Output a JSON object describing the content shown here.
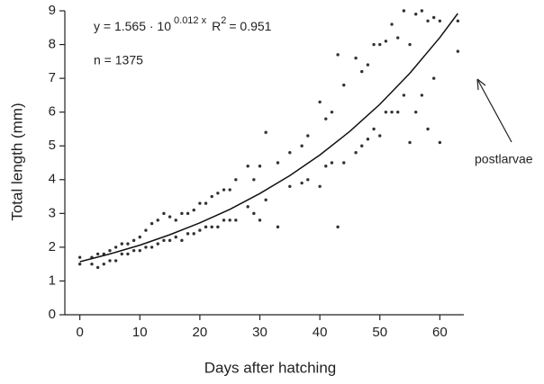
{
  "chart_data": {
    "type": "scatter",
    "x_label": "Days after hatching",
    "y_label": "Total length (mm)",
    "annotations": {
      "equation": "y = 1.565 · 10",
      "exponent": "0.012 x",
      "r": "R",
      "r_exponent": "2",
      "r_value": "= 0.951",
      "n": "n = 1375",
      "postlarvae": "postlarvae"
    },
    "x": [
      0,
      2,
      3,
      4,
      5,
      6,
      7,
      8,
      9,
      10,
      11,
      12,
      13,
      14,
      15,
      16,
      17,
      18,
      19,
      20,
      21,
      22,
      23,
      24,
      25,
      26,
      28,
      29,
      30,
      31,
      33,
      35,
      37,
      38,
      40,
      41,
      42,
      43,
      44,
      46,
      47,
      48,
      49,
      50,
      51,
      52,
      53,
      54,
      55,
      56,
      57,
      58,
      59,
      60,
      63,
      0,
      2,
      3,
      4,
      5,
      6,
      7,
      8,
      9,
      10,
      11,
      12,
      13,
      14,
      15,
      16,
      17,
      18,
      19,
      20,
      21,
      22,
      23,
      24,
      25,
      26,
      28,
      29,
      30,
      31,
      33,
      35,
      37,
      38,
      40,
      41,
      42,
      43,
      44,
      46,
      47,
      48,
      49,
      50,
      51,
      52,
      53,
      54,
      55,
      56,
      57,
      58,
      59,
      60,
      63
    ],
    "values": [
      1.5,
      1.5,
      1.4,
      1.5,
      1.6,
      1.6,
      1.8,
      1.8,
      1.9,
      1.9,
      2.0,
      2.0,
      2.1,
      2.2,
      2.2,
      2.3,
      2.2,
      2.4,
      2.4,
      2.5,
      2.6,
      2.6,
      2.6,
      2.8,
      2.8,
      2.8,
      3.2,
      3.0,
      2.8,
      3.4,
      2.6,
      3.8,
      3.9,
      4.0,
      3.8,
      4.4,
      4.5,
      2.6,
      4.5,
      4.8,
      5.0,
      5.2,
      5.5,
      5.3,
      6.0,
      6.0,
      6.0,
      6.5,
      5.1,
      6.0,
      6.5,
      5.5,
      7.0,
      5.1,
      7.8,
      1.7,
      1.7,
      1.8,
      1.8,
      1.9,
      2.0,
      2.1,
      2.1,
      2.2,
      2.3,
      2.5,
      2.7,
      2.8,
      3.0,
      2.9,
      2.8,
      3.0,
      3.0,
      3.1,
      3.3,
      3.3,
      3.5,
      3.6,
      3.7,
      3.7,
      4.0,
      4.4,
      4.0,
      4.4,
      5.4,
      4.5,
      4.8,
      5.0,
      5.3,
      6.3,
      5.8,
      6.0,
      7.7,
      6.8,
      7.6,
      7.2,
      7.4,
      8.0,
      8.0,
      8.1,
      8.6,
      8.2,
      9.0,
      8.0,
      8.9,
      9.0,
      8.7,
      8.8,
      8.7,
      8.7
    ],
    "color": "#333333",
    "fit": {
      "x": [
        0,
        5,
        10,
        15,
        20,
        25,
        30,
        35,
        40,
        45,
        50,
        55,
        60,
        63
      ],
      "values": [
        1.57,
        1.8,
        2.06,
        2.37,
        2.72,
        3.12,
        3.59,
        4.12,
        4.73,
        5.43,
        6.23,
        7.15,
        8.21,
        8.92
      ],
      "color": "#111111"
    },
    "xlim": [
      -2.5,
      64
    ],
    "ylim": [
      0,
      9
    ],
    "xticks": [
      0,
      10,
      20,
      30,
      40,
      50,
      60
    ],
    "yticks": [
      0,
      1,
      2,
      3,
      4,
      5,
      6,
      7,
      8,
      9
    ]
  }
}
